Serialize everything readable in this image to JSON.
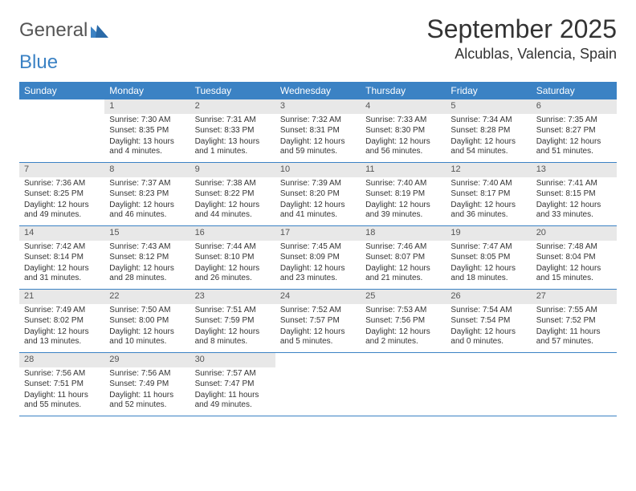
{
  "brand": {
    "part1": "General",
    "part2": "Blue"
  },
  "title": "September 2025",
  "location": "Alcublas, Valencia, Spain",
  "weekdays": [
    "Sunday",
    "Monday",
    "Tuesday",
    "Wednesday",
    "Thursday",
    "Friday",
    "Saturday"
  ],
  "colors": {
    "header_bg": "#3b82c4",
    "header_text": "#ffffff",
    "daynum_bg": "#e8e8e8",
    "border": "#3b82c4"
  },
  "weeks": [
    [
      {
        "n": "",
        "sunrise": "",
        "sunset": "",
        "daylight": ""
      },
      {
        "n": "1",
        "sunrise": "Sunrise: 7:30 AM",
        "sunset": "Sunset: 8:35 PM",
        "daylight": "Daylight: 13 hours and 4 minutes."
      },
      {
        "n": "2",
        "sunrise": "Sunrise: 7:31 AM",
        "sunset": "Sunset: 8:33 PM",
        "daylight": "Daylight: 13 hours and 1 minutes."
      },
      {
        "n": "3",
        "sunrise": "Sunrise: 7:32 AM",
        "sunset": "Sunset: 8:31 PM",
        "daylight": "Daylight: 12 hours and 59 minutes."
      },
      {
        "n": "4",
        "sunrise": "Sunrise: 7:33 AM",
        "sunset": "Sunset: 8:30 PM",
        "daylight": "Daylight: 12 hours and 56 minutes."
      },
      {
        "n": "5",
        "sunrise": "Sunrise: 7:34 AM",
        "sunset": "Sunset: 8:28 PM",
        "daylight": "Daylight: 12 hours and 54 minutes."
      },
      {
        "n": "6",
        "sunrise": "Sunrise: 7:35 AM",
        "sunset": "Sunset: 8:27 PM",
        "daylight": "Daylight: 12 hours and 51 minutes."
      }
    ],
    [
      {
        "n": "7",
        "sunrise": "Sunrise: 7:36 AM",
        "sunset": "Sunset: 8:25 PM",
        "daylight": "Daylight: 12 hours and 49 minutes."
      },
      {
        "n": "8",
        "sunrise": "Sunrise: 7:37 AM",
        "sunset": "Sunset: 8:23 PM",
        "daylight": "Daylight: 12 hours and 46 minutes."
      },
      {
        "n": "9",
        "sunrise": "Sunrise: 7:38 AM",
        "sunset": "Sunset: 8:22 PM",
        "daylight": "Daylight: 12 hours and 44 minutes."
      },
      {
        "n": "10",
        "sunrise": "Sunrise: 7:39 AM",
        "sunset": "Sunset: 8:20 PM",
        "daylight": "Daylight: 12 hours and 41 minutes."
      },
      {
        "n": "11",
        "sunrise": "Sunrise: 7:40 AM",
        "sunset": "Sunset: 8:19 PM",
        "daylight": "Daylight: 12 hours and 39 minutes."
      },
      {
        "n": "12",
        "sunrise": "Sunrise: 7:40 AM",
        "sunset": "Sunset: 8:17 PM",
        "daylight": "Daylight: 12 hours and 36 minutes."
      },
      {
        "n": "13",
        "sunrise": "Sunrise: 7:41 AM",
        "sunset": "Sunset: 8:15 PM",
        "daylight": "Daylight: 12 hours and 33 minutes."
      }
    ],
    [
      {
        "n": "14",
        "sunrise": "Sunrise: 7:42 AM",
        "sunset": "Sunset: 8:14 PM",
        "daylight": "Daylight: 12 hours and 31 minutes."
      },
      {
        "n": "15",
        "sunrise": "Sunrise: 7:43 AM",
        "sunset": "Sunset: 8:12 PM",
        "daylight": "Daylight: 12 hours and 28 minutes."
      },
      {
        "n": "16",
        "sunrise": "Sunrise: 7:44 AM",
        "sunset": "Sunset: 8:10 PM",
        "daylight": "Daylight: 12 hours and 26 minutes."
      },
      {
        "n": "17",
        "sunrise": "Sunrise: 7:45 AM",
        "sunset": "Sunset: 8:09 PM",
        "daylight": "Daylight: 12 hours and 23 minutes."
      },
      {
        "n": "18",
        "sunrise": "Sunrise: 7:46 AM",
        "sunset": "Sunset: 8:07 PM",
        "daylight": "Daylight: 12 hours and 21 minutes."
      },
      {
        "n": "19",
        "sunrise": "Sunrise: 7:47 AM",
        "sunset": "Sunset: 8:05 PM",
        "daylight": "Daylight: 12 hours and 18 minutes."
      },
      {
        "n": "20",
        "sunrise": "Sunrise: 7:48 AM",
        "sunset": "Sunset: 8:04 PM",
        "daylight": "Daylight: 12 hours and 15 minutes."
      }
    ],
    [
      {
        "n": "21",
        "sunrise": "Sunrise: 7:49 AM",
        "sunset": "Sunset: 8:02 PM",
        "daylight": "Daylight: 12 hours and 13 minutes."
      },
      {
        "n": "22",
        "sunrise": "Sunrise: 7:50 AM",
        "sunset": "Sunset: 8:00 PM",
        "daylight": "Daylight: 12 hours and 10 minutes."
      },
      {
        "n": "23",
        "sunrise": "Sunrise: 7:51 AM",
        "sunset": "Sunset: 7:59 PM",
        "daylight": "Daylight: 12 hours and 8 minutes."
      },
      {
        "n": "24",
        "sunrise": "Sunrise: 7:52 AM",
        "sunset": "Sunset: 7:57 PM",
        "daylight": "Daylight: 12 hours and 5 minutes."
      },
      {
        "n": "25",
        "sunrise": "Sunrise: 7:53 AM",
        "sunset": "Sunset: 7:56 PM",
        "daylight": "Daylight: 12 hours and 2 minutes."
      },
      {
        "n": "26",
        "sunrise": "Sunrise: 7:54 AM",
        "sunset": "Sunset: 7:54 PM",
        "daylight": "Daylight: 12 hours and 0 minutes."
      },
      {
        "n": "27",
        "sunrise": "Sunrise: 7:55 AM",
        "sunset": "Sunset: 7:52 PM",
        "daylight": "Daylight: 11 hours and 57 minutes."
      }
    ],
    [
      {
        "n": "28",
        "sunrise": "Sunrise: 7:56 AM",
        "sunset": "Sunset: 7:51 PM",
        "daylight": "Daylight: 11 hours and 55 minutes."
      },
      {
        "n": "29",
        "sunrise": "Sunrise: 7:56 AM",
        "sunset": "Sunset: 7:49 PM",
        "daylight": "Daylight: 11 hours and 52 minutes."
      },
      {
        "n": "30",
        "sunrise": "Sunrise: 7:57 AM",
        "sunset": "Sunset: 7:47 PM",
        "daylight": "Daylight: 11 hours and 49 minutes."
      },
      {
        "n": "",
        "sunrise": "",
        "sunset": "",
        "daylight": ""
      },
      {
        "n": "",
        "sunrise": "",
        "sunset": "",
        "daylight": ""
      },
      {
        "n": "",
        "sunrise": "",
        "sunset": "",
        "daylight": ""
      },
      {
        "n": "",
        "sunrise": "",
        "sunset": "",
        "daylight": ""
      }
    ]
  ]
}
